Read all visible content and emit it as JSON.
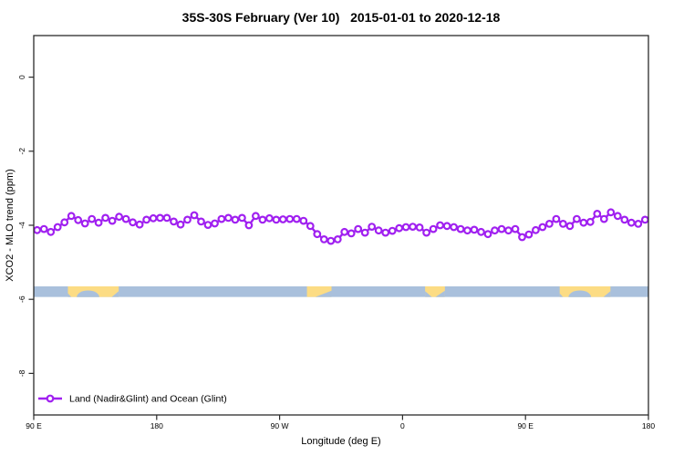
{
  "title": "35S-30S February (Ver 10)   2015-01-01 to 2020-12-18",
  "legend": {
    "label": "Land (Nadir&Glint) and Ocean (Glint)"
  },
  "colors": {
    "series": "#A020F0",
    "marker_fill": "#ffffff",
    "ocean": "#A9C0DC",
    "land": "#FCDC84",
    "axis": "#2b2b2b"
  },
  "chart_data": {
    "type": "line",
    "title": "35S-30S February (Ver 10)   2015-01-01 to 2020-12-18",
    "xlabel": "Longitude (deg E)",
    "ylabel": "XCO2 - MLO trend (ppm)",
    "grid": false,
    "legend_position": "bottom-left",
    "x_axis": {
      "range": [
        90,
        540
      ],
      "ticks": [
        {
          "value": 90,
          "label": "90 E"
        },
        {
          "value": 180,
          "label": "180"
        },
        {
          "value": 270,
          "label": "90 W"
        },
        {
          "value": 360,
          "label": "0"
        },
        {
          "value": 450,
          "label": "90 E"
        },
        {
          "value": 540,
          "label": "180"
        }
      ]
    },
    "y_axis": {
      "range": [
        -9.1,
        1.1
      ],
      "ticks": [
        {
          "value": 0,
          "label": "0"
        },
        {
          "value": -2,
          "label": "-2"
        },
        {
          "value": -4,
          "label": "-4"
        },
        {
          "value": -6,
          "label": "-6"
        },
        {
          "value": -8,
          "label": "-8"
        }
      ]
    },
    "series": [
      {
        "name": "Land (Nadir&Glint) and Ocean (Glint)",
        "marker": "open-circle",
        "x_start": 92.5,
        "x_step": 5,
        "values": [
          -4.13,
          -4.1,
          -4.18,
          -4.05,
          -3.92,
          -3.75,
          -3.86,
          -3.95,
          -3.83,
          -3.93,
          -3.8,
          -3.88,
          -3.77,
          -3.83,
          -3.92,
          -3.98,
          -3.85,
          -3.81,
          -3.8,
          -3.8,
          -3.9,
          -3.98,
          -3.85,
          -3.73,
          -3.9,
          -3.99,
          -3.95,
          -3.83,
          -3.8,
          -3.85,
          -3.8,
          -4.0,
          -3.75,
          -3.85,
          -3.81,
          -3.85,
          -3.84,
          -3.83,
          -3.83,
          -3.88,
          -4.02,
          -4.24,
          -4.38,
          -4.42,
          -4.38,
          -4.18,
          -4.22,
          -4.1,
          -4.2,
          -4.04,
          -4.14,
          -4.2,
          -4.15,
          -4.08,
          -4.05,
          -4.04,
          -4.06,
          -4.2,
          -4.1,
          -4.0,
          -4.02,
          -4.05,
          -4.1,
          -4.14,
          -4.12,
          -4.18,
          -4.24,
          -4.14,
          -4.1,
          -4.14,
          -4.1,
          -4.32,
          -4.25,
          -4.13,
          -4.05,
          -3.96,
          -3.83,
          -3.96,
          -4.02,
          -3.83,
          -3.93,
          -3.91,
          -3.69,
          -3.83,
          -3.65,
          -3.75,
          -3.85,
          -3.93,
          -3.96,
          -3.85
        ]
      }
    ],
    "band": {
      "description": "ocean-land strip",
      "y_top": -5.65,
      "y_bottom": -5.94,
      "land_patches": [
        {
          "name": "australia",
          "lon0": 115,
          "lon1": 152.2,
          "cutouts": [
            {
              "type": "ellipse",
              "lon0": 121.5,
              "lon1": 138,
              "depth": 0.62
            },
            {
              "type": "tri-br",
              "lon0": 147,
              "lon1": 152.2,
              "depth": 0.55
            },
            {
              "type": "tri-bl",
              "lon0": 115,
              "lon1": 117.5,
              "depth": 0.35
            }
          ]
        },
        {
          "name": "south-america",
          "lon0": 290,
          "lon1": 308,
          "cutouts": [
            {
              "type": "tri-br",
              "lon0": 296,
              "lon1": 308,
              "depth": 0.6
            }
          ]
        },
        {
          "name": "africa",
          "lon0": 376.5,
          "lon1": 391,
          "cutouts": [
            {
              "type": "tri-bl",
              "lon0": 376.5,
              "lon1": 381.5,
              "depth": 0.55
            },
            {
              "type": "tri-br",
              "lon0": 384,
              "lon1": 391,
              "depth": 0.6
            }
          ]
        },
        {
          "name": "australia-2",
          "lon0": 475,
          "lon1": 512.2,
          "cutouts": [
            {
              "type": "ellipse",
              "lon0": 481.5,
              "lon1": 498,
              "depth": 0.62
            },
            {
              "type": "tri-br",
              "lon0": 507,
              "lon1": 512.2,
              "depth": 0.55
            },
            {
              "type": "tri-bl",
              "lon0": 475,
              "lon1": 477.5,
              "depth": 0.35
            }
          ]
        }
      ]
    }
  }
}
